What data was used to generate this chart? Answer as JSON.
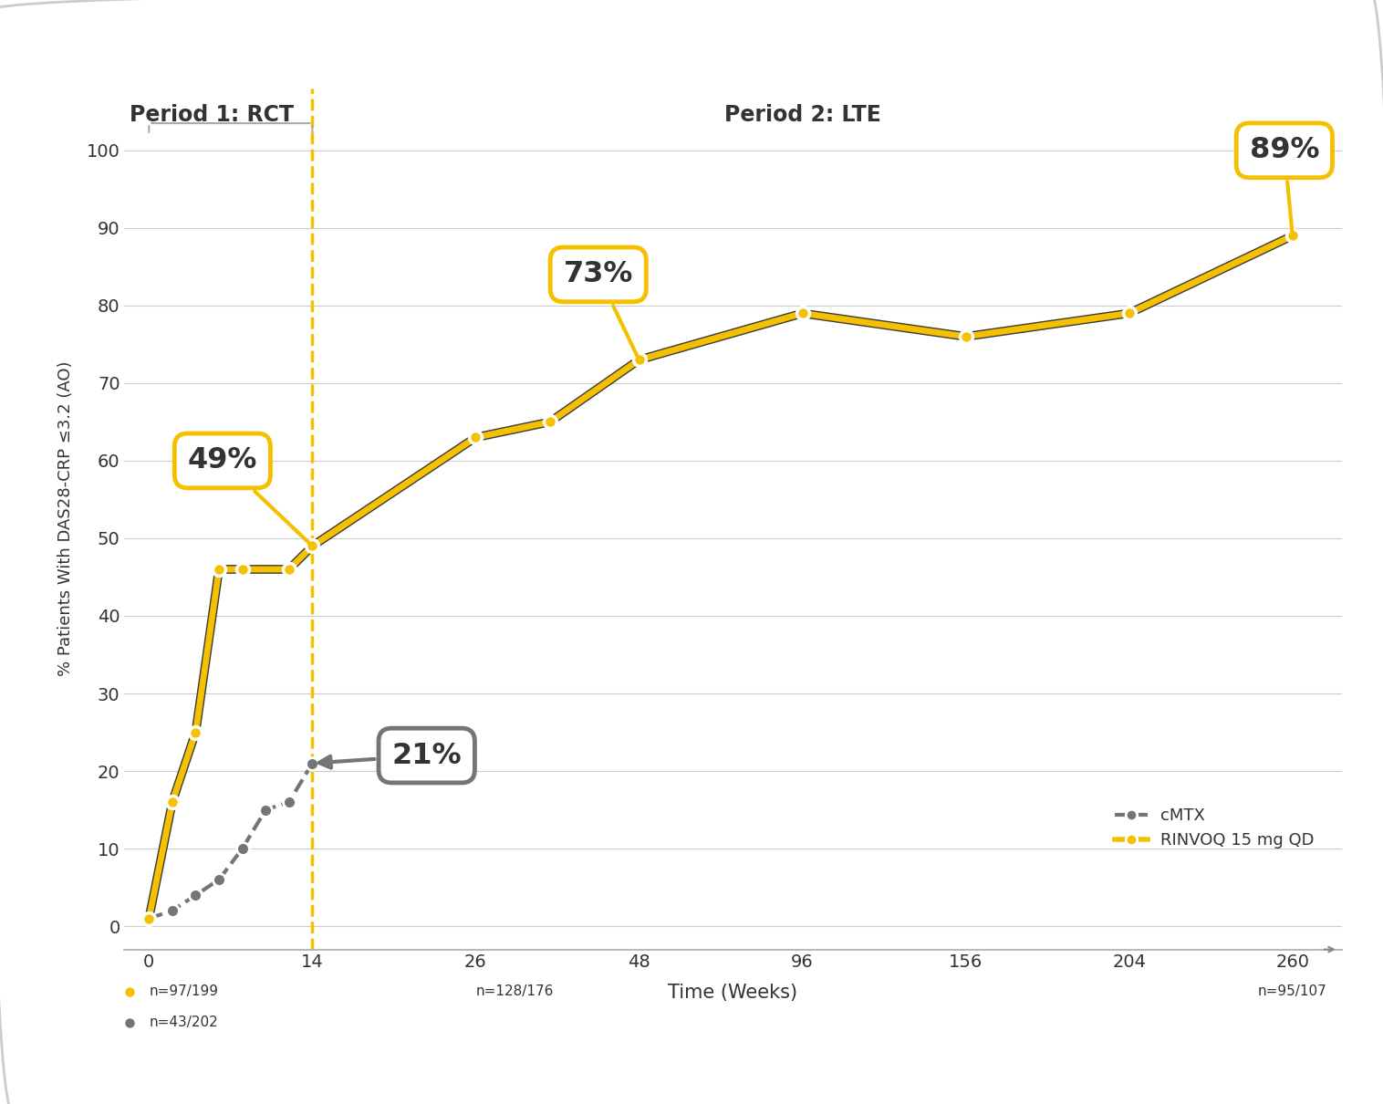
{
  "rinvoq_x": [
    0,
    2,
    4,
    6,
    8,
    12,
    14,
    26,
    36,
    48,
    96,
    156,
    204,
    260
  ],
  "rinvoq_y": [
    1,
    16,
    25,
    46,
    46,
    46,
    49,
    63,
    65,
    73,
    79,
    76,
    79,
    89
  ],
  "cmtx_x": [
    0,
    2,
    4,
    6,
    8,
    10,
    12,
    14
  ],
  "cmtx_y": [
    1,
    2,
    4,
    6,
    10,
    15,
    16,
    21
  ],
  "rinvoq_color": "#F5C000",
  "cmtx_color": "#757575",
  "dashed_line_color": "#F5C000",
  "title_period1": "Period 1: RCT",
  "title_period2": "Period 2: LTE",
  "xlabel": "Time (Weeks)",
  "ylabel": "% Patients With DAS28-CRP ≤3.2 (AO)",
  "xtick_positions": [
    0,
    14,
    26,
    48,
    96,
    156,
    204,
    260
  ],
  "xtick_labels": [
    "0",
    "14",
    "26",
    "48",
    "96",
    "156",
    "204",
    "260"
  ],
  "yticks": [
    0,
    10,
    20,
    30,
    40,
    50,
    60,
    70,
    80,
    90,
    100
  ],
  "ylim": [
    -3,
    108
  ],
  "legend_cmtx": "cMTX",
  "legend_rinvoq": "RINVOQ 15 mg QD",
  "n_label_14_rinvoq": "n=97/199",
  "n_label_14_cmtx": "n=43/202",
  "n_label_26": "n=128/176",
  "n_label_260": "n=95/107",
  "bg_color": "#FFFFFF",
  "grid_color": "#CCCCCC",
  "text_color": "#333333",
  "annot_49_label": "49%",
  "annot_73_label": "73%",
  "annot_89_label": "89%",
  "annot_21_label": "21%"
}
